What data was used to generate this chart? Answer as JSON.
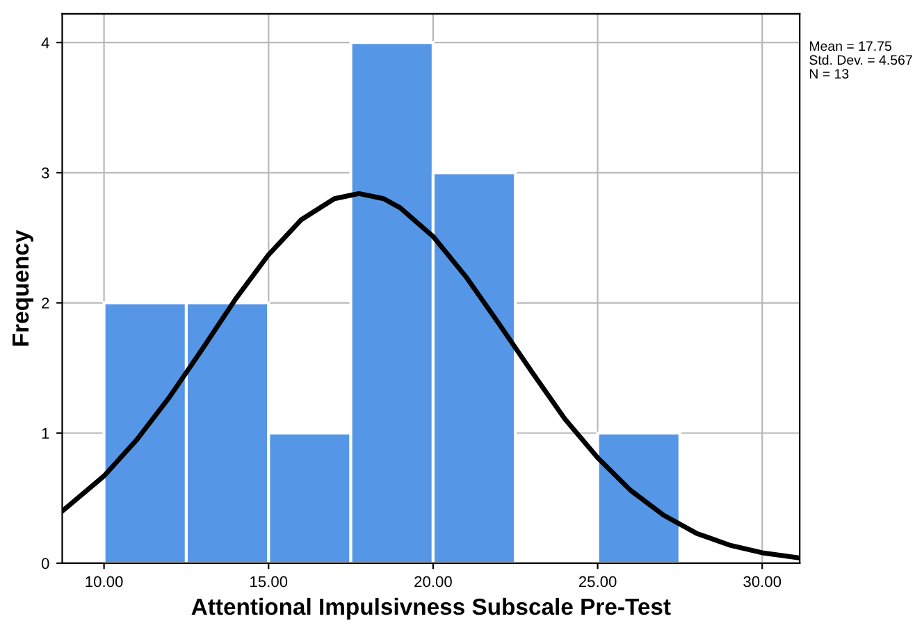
{
  "chart_data": {
    "type": "histogram",
    "xlabel": "Attentional Impulsivness Subscale Pre-Test",
    "ylabel": "Frequency",
    "annotations": [
      "Mean = 17.75",
      "Std. Dev. = 4.567",
      "N = 13"
    ],
    "series": [
      {
        "color": "#5596e6",
        "bins": [
          10,
          12.5,
          15,
          17.5,
          20,
          22.5,
          25,
          27.5
        ],
        "values": [
          2,
          2,
          1,
          4,
          3,
          0,
          1
        ]
      },
      {
        "type": "line",
        "color": "#000000",
        "x": [
          8.73,
          10,
          11,
          12,
          13,
          14,
          15,
          16,
          17,
          17.75,
          18.5,
          19,
          20,
          21,
          22,
          23,
          24,
          25,
          26,
          27,
          28,
          29,
          30,
          31.14
        ],
        "values": [
          0.4,
          0.67,
          0.95,
          1.28,
          1.65,
          2.03,
          2.37,
          2.64,
          2.8,
          2.84,
          2.8,
          2.73,
          2.51,
          2.2,
          1.84,
          1.47,
          1.11,
          0.81,
          0.56,
          0.37,
          0.23,
          0.14,
          0.08,
          0.04
        ]
      }
    ],
    "xlim": [
      8.73,
      31.14
    ],
    "ylim": [
      0,
      4.22
    ],
    "xticks": [
      {
        "value": 10,
        "label": "10.00"
      },
      {
        "value": 15,
        "label": "15.00"
      },
      {
        "value": 20,
        "label": "20.00"
      },
      {
        "value": 25,
        "label": "25.00"
      },
      {
        "value": 30,
        "label": "30.00"
      }
    ],
    "yticks": [
      0,
      1,
      2,
      3,
      4
    ],
    "grid": true,
    "marker": "none",
    "line_style": "solid"
  }
}
